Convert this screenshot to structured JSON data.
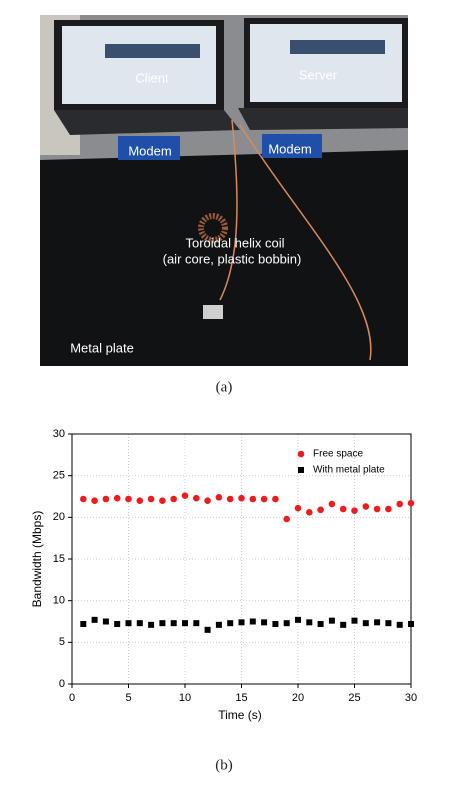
{
  "photo": {
    "labels": [
      "Client",
      "Server",
      "Modem",
      "Modem",
      "Toroidal helix coil",
      "(air core, plastic bobbin)",
      "Metal plate"
    ]
  },
  "captions": [
    "(a)",
    "(b)"
  ],
  "chart_data": {
    "type": "scatter",
    "x_label": "Time (s)",
    "y_label": "Bandwidth (Mbps)",
    "x": [
      1,
      2,
      3,
      4,
      5,
      6,
      7,
      8,
      9,
      10,
      11,
      12,
      13,
      14,
      15,
      16,
      17,
      18,
      19,
      20,
      21,
      22,
      23,
      24,
      25,
      26,
      27,
      28,
      29,
      30
    ],
    "series": [
      {
        "name": "Free space",
        "color": "#ee1c1c",
        "marker": "circle",
        "values": [
          22.2,
          22.0,
          22.2,
          22.3,
          22.2,
          22.0,
          22.2,
          22.0,
          22.2,
          22.6,
          22.3,
          22.0,
          22.4,
          22.2,
          22.3,
          22.2,
          22.2,
          22.2,
          19.8,
          21.1,
          20.6,
          20.9,
          21.6,
          21.0,
          20.8,
          21.3,
          21.0,
          21.0,
          21.6,
          21.7
        ]
      },
      {
        "name": "With metal plate",
        "color": "#000000",
        "marker": "square",
        "values": [
          7.2,
          7.7,
          7.5,
          7.2,
          7.3,
          7.3,
          7.1,
          7.3,
          7.3,
          7.3,
          7.3,
          6.5,
          7.1,
          7.3,
          7.4,
          7.5,
          7.4,
          7.2,
          7.3,
          7.7,
          7.4,
          7.2,
          7.6,
          7.1,
          7.6,
          7.3,
          7.4,
          7.3,
          7.1,
          7.2
        ]
      }
    ],
    "xlim": [
      0,
      30
    ],
    "xticks": [
      0,
      5,
      10,
      15,
      20,
      25,
      30
    ],
    "ylim": [
      0,
      30
    ],
    "yticks": [
      0,
      5,
      10,
      15,
      20,
      25,
      30
    ],
    "grid": true,
    "legend": "upper right"
  }
}
